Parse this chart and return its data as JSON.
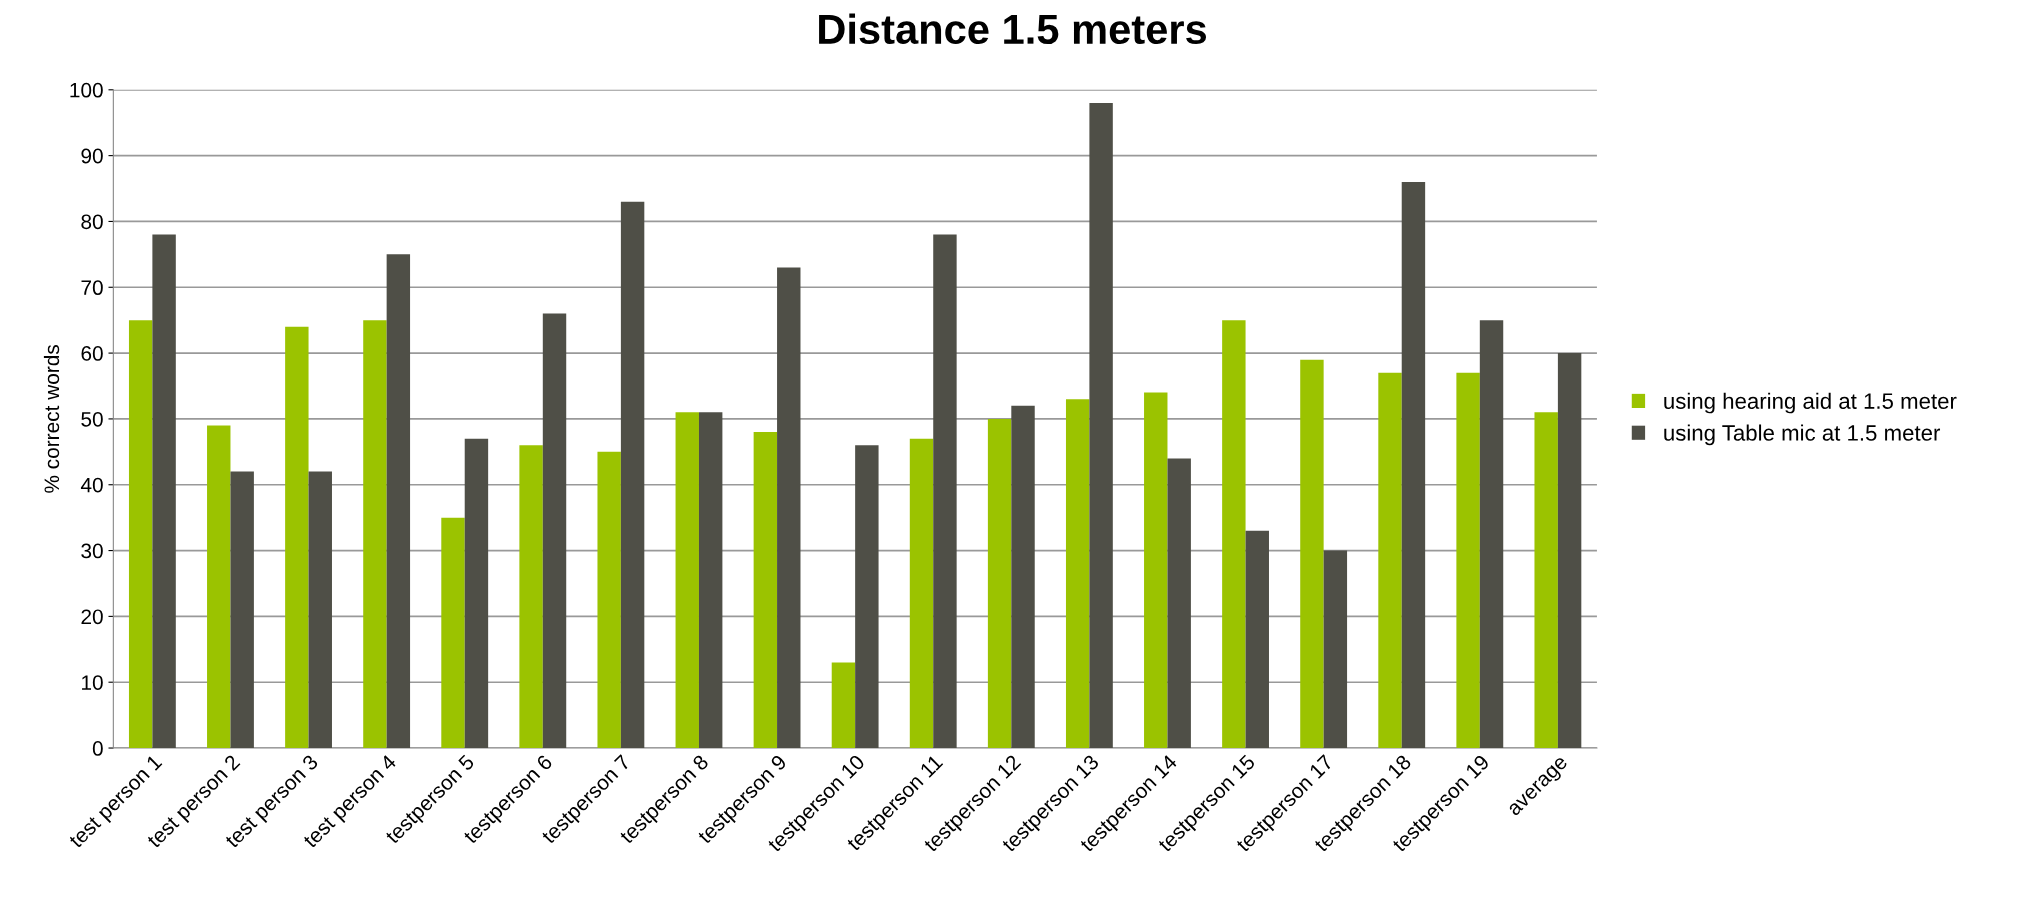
{
  "chart_data": {
    "type": "bar",
    "title": "Distance 1.5 meters",
    "ylabel": "% correct words",
    "categories": [
      "test person 1",
      "test person 2",
      "test person 3",
      "test person 4",
      "testperson 5",
      "testperson 6",
      "testperson 7",
      "testperson 8",
      "testperson 9",
      "testperson 10",
      "testperson 11",
      "testperson 12",
      "testperson 13",
      "testperson 14",
      "testperson 15",
      "testperson 17",
      "testperson 18",
      "testperson 19",
      "average"
    ],
    "series": [
      {
        "name": "using hearing aid at 1.5 meter",
        "color": "#9bc300",
        "values": [
          65,
          49,
          64,
          65,
          35,
          46,
          45,
          51,
          48,
          13,
          47,
          50,
          53,
          54,
          65,
          59,
          57,
          57,
          51
        ]
      },
      {
        "name": "using Table mic at 1.5 meter",
        "color": "#4f4f47",
        "values": [
          78,
          42,
          42,
          75,
          47,
          66,
          83,
          51,
          73,
          46,
          78,
          52,
          98,
          44,
          33,
          30,
          86,
          65,
          60
        ]
      }
    ],
    "ylim": [
      0,
      100
    ],
    "yticks": [
      0,
      10,
      20,
      30,
      40,
      50,
      60,
      70,
      80,
      90,
      100
    ],
    "grid": "y",
    "legend": "right"
  }
}
